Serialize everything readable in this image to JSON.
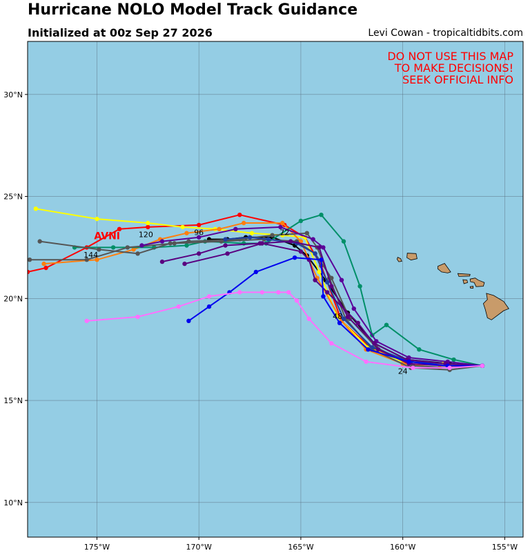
{
  "header": {
    "title": "Hurricane NOLO Model Track Guidance",
    "subtitle": "Initialized at 00z Sep 27 2026",
    "credit": "Levi Cowan - tropicaltidbits.com"
  },
  "warning": {
    "line1": "DO NOT USE THIS MAP",
    "line2": "TO MAKE DECISIONS!",
    "line3": "SEEK OFFICIAL INFO",
    "color": "#ff0000"
  },
  "map": {
    "ocean_color": "#94cde4",
    "land_color": "#c89b6a",
    "lon_range": [
      -178.4,
      -154.1
    ],
    "lat_range": [
      8.3,
      32.6
    ],
    "lat_ticks": [
      {
        "value": 10,
        "label": "10°N"
      },
      {
        "value": 15,
        "label": "15°N"
      },
      {
        "value": 20,
        "label": "20°N"
      },
      {
        "value": 25,
        "label": "25°N"
      },
      {
        "value": 30,
        "label": "30°N"
      }
    ],
    "lon_ticks": [
      {
        "value": -175,
        "label": "175°W"
      },
      {
        "value": -170,
        "label": "170°W"
      },
      {
        "value": -165,
        "label": "165°W"
      },
      {
        "value": -160,
        "label": "160°W"
      },
      {
        "value": -155,
        "label": "155°W"
      }
    ]
  },
  "model_label": {
    "text": "AVNI",
    "lon": -174.5,
    "lat": 22.9
  },
  "hour_labels": [
    {
      "text": "24",
      "lon": -160.0,
      "lat": 16.3
    },
    {
      "text": "48",
      "lon": -163.2,
      "lat": 19.0
    },
    {
      "text": "72",
      "lon": -165.8,
      "lat": 23.1
    },
    {
      "text": "96",
      "lon": -170.0,
      "lat": 23.1
    },
    {
      "text": "120",
      "lon": -172.6,
      "lat": 23.0
    },
    {
      "text": "144",
      "lon": -175.3,
      "lat": 22.0
    }
  ],
  "chart_data": {
    "type": "scatter",
    "series": [
      {
        "color": "#ff0000",
        "points": [
          [
            -156.1,
            16.7
          ],
          [
            -158.0,
            16.8
          ],
          [
            -159.9,
            16.9
          ],
          [
            -161.6,
            17.6
          ],
          [
            -163.0,
            18.9
          ],
          [
            -164.0,
            21.6
          ],
          [
            -164.8,
            23.0
          ],
          [
            -165.8,
            23.6
          ],
          [
            -168.0,
            24.1
          ],
          [
            -170.0,
            23.6
          ],
          [
            -172.5,
            23.5
          ],
          [
            -173.9,
            23.4
          ],
          [
            -175.5,
            22.5
          ],
          [
            -177.5,
            21.5
          ],
          [
            -178.4,
            21.3
          ]
        ]
      },
      {
        "color": "#000000",
        "points": [
          [
            -156.1,
            16.7
          ],
          [
            -157.7,
            16.8
          ],
          [
            -159.8,
            17.0
          ],
          [
            -161.4,
            17.8
          ],
          [
            -162.7,
            19.3
          ],
          [
            -163.8,
            20.9
          ],
          [
            -164.7,
            22.1
          ],
          [
            -165.3,
            22.6
          ],
          [
            -166.4,
            23.0
          ],
          [
            -167.7,
            23.0
          ],
          [
            -168.6,
            22.9
          ],
          [
            -169.5,
            22.9
          ]
        ]
      },
      {
        "color": "#ffff00",
        "points": [
          [
            -156.1,
            16.7
          ],
          [
            -158.0,
            16.8
          ],
          [
            -160.0,
            16.9
          ],
          [
            -161.7,
            17.6
          ],
          [
            -163.2,
            19.1
          ],
          [
            -164.1,
            21.3
          ],
          [
            -164.8,
            23.0
          ],
          [
            -165.9,
            23.1
          ],
          [
            -167.4,
            23.2
          ],
          [
            -169.2,
            23.4
          ],
          [
            -170.8,
            23.5
          ],
          [
            -172.5,
            23.7
          ],
          [
            -175.0,
            23.9
          ],
          [
            -178.0,
            24.4
          ]
        ]
      },
      {
        "color": "#ff7f0e",
        "points": [
          [
            -156.1,
            16.7
          ],
          [
            -158.2,
            16.6
          ],
          [
            -160.0,
            16.8
          ],
          [
            -161.8,
            17.5
          ],
          [
            -163.0,
            18.9
          ],
          [
            -164.2,
            21.0
          ],
          [
            -165.0,
            22.8
          ],
          [
            -165.9,
            23.7
          ],
          [
            -167.8,
            23.7
          ],
          [
            -169.0,
            23.4
          ],
          [
            -170.6,
            23.2
          ],
          [
            -171.9,
            22.9
          ],
          [
            -173.2,
            22.4
          ],
          [
            -175.0,
            21.9
          ],
          [
            -177.6,
            21.7
          ]
        ]
      },
      {
        "color": "#008f68",
        "points": [
          [
            -156.1,
            16.7
          ],
          [
            -157.5,
            17.0
          ],
          [
            -159.2,
            17.5
          ],
          [
            -160.8,
            18.7
          ],
          [
            -161.5,
            18.2
          ],
          [
            -162.1,
            20.6
          ],
          [
            -162.9,
            22.8
          ],
          [
            -164.0,
            24.1
          ],
          [
            -165.0,
            23.8
          ],
          [
            -166.7,
            22.7
          ],
          [
            -167.8,
            22.7
          ],
          [
            -169.7,
            22.8
          ],
          [
            -170.6,
            22.6
          ],
          [
            -172.2,
            22.5
          ],
          [
            -174.2,
            22.5
          ],
          [
            -176.1,
            22.5
          ]
        ]
      },
      {
        "color": "#555555",
        "points": [
          [
            -156.1,
            16.7
          ],
          [
            -157.7,
            16.5
          ],
          [
            -159.6,
            16.6
          ],
          [
            -161.5,
            17.5
          ],
          [
            -162.8,
            19.0
          ],
          [
            -163.6,
            21.0
          ],
          [
            -164.2,
            22.5
          ],
          [
            -164.7,
            23.2
          ],
          [
            -166.4,
            23.1
          ],
          [
            -168.0,
            22.9
          ],
          [
            -170.5,
            22.8
          ],
          [
            -171.4,
            22.7
          ],
          [
            -173.0,
            22.2
          ],
          [
            -174.9,
            22.4
          ],
          [
            -177.8,
            22.8
          ]
        ]
      },
      {
        "color": "#555555",
        "points": [
          [
            -156.1,
            16.7
          ],
          [
            -157.7,
            16.6
          ],
          [
            -159.5,
            16.7
          ],
          [
            -161.3,
            17.6
          ],
          [
            -162.6,
            19.0
          ],
          [
            -163.5,
            21.0
          ],
          [
            -164.3,
            22.2
          ],
          [
            -165.2,
            22.8
          ],
          [
            -166.8,
            22.9
          ],
          [
            -168.9,
            22.8
          ],
          [
            -171.2,
            22.7
          ],
          [
            -173.5,
            22.5
          ],
          [
            -175.5,
            21.9
          ],
          [
            -178.3,
            21.9
          ]
        ]
      },
      {
        "color": "#1f3fa0",
        "points": [
          [
            -156.1,
            16.7
          ],
          [
            -157.9,
            16.8
          ],
          [
            -159.6,
            16.9
          ],
          [
            -161.5,
            17.6
          ],
          [
            -162.9,
            19.0
          ],
          [
            -163.7,
            20.8
          ],
          [
            -164.3,
            22.2
          ],
          [
            -165.2,
            22.7
          ],
          [
            -166.6,
            22.9
          ],
          [
            -167.5,
            23.0
          ],
          [
            -168.7,
            22.9
          ]
        ]
      },
      {
        "color": "#5a0099",
        "points": [
          [
            -156.1,
            16.7
          ],
          [
            -157.8,
            16.9
          ],
          [
            -159.7,
            17.1
          ],
          [
            -161.3,
            17.9
          ],
          [
            -162.4,
            19.5
          ],
          [
            -163.0,
            20.9
          ],
          [
            -163.9,
            22.5
          ],
          [
            -164.4,
            22.9
          ],
          [
            -166.0,
            23.5
          ],
          [
            -168.2,
            23.4
          ],
          [
            -170.0,
            23.0
          ],
          [
            -171.8,
            22.8
          ],
          [
            -172.8,
            22.6
          ]
        ]
      },
      {
        "color": "#5a0080",
        "points": [
          [
            -156.1,
            16.7
          ],
          [
            -157.9,
            16.8
          ],
          [
            -159.8,
            17.0
          ],
          [
            -161.4,
            17.8
          ],
          [
            -162.7,
            19.1
          ],
          [
            -163.5,
            20.6
          ],
          [
            -164.1,
            22.5
          ],
          [
            -165.5,
            22.8
          ],
          [
            -167.0,
            22.7
          ],
          [
            -168.7,
            22.6
          ],
          [
            -170.0,
            22.2
          ],
          [
            -171.8,
            21.8
          ]
        ]
      },
      {
        "color": "#5a0080",
        "points": [
          [
            -156.1,
            16.7
          ],
          [
            -157.8,
            16.7
          ],
          [
            -159.7,
            16.8
          ],
          [
            -161.2,
            17.5
          ],
          [
            -162.2,
            18.8
          ],
          [
            -163.7,
            20.3
          ],
          [
            -164.3,
            20.9
          ],
          [
            -164.6,
            21.9
          ],
          [
            -165.0,
            22.3
          ],
          [
            -166.9,
            22.7
          ],
          [
            -168.6,
            22.2
          ],
          [
            -170.7,
            21.7
          ]
        ]
      },
      {
        "color": "#0000ee",
        "points": [
          [
            -156.1,
            16.7
          ],
          [
            -157.8,
            16.7
          ],
          [
            -159.7,
            16.9
          ],
          [
            -161.7,
            17.5
          ],
          [
            -163.1,
            18.8
          ],
          [
            -163.9,
            20.1
          ],
          [
            -164.0,
            21.9
          ],
          [
            -165.3,
            22.0
          ],
          [
            -167.2,
            21.3
          ],
          [
            -168.5,
            20.3
          ],
          [
            -169.5,
            19.6
          ],
          [
            -170.5,
            18.9
          ]
        ]
      },
      {
        "color": "#ff70ff",
        "points": [
          [
            -156.1,
            16.7
          ],
          [
            -157.7,
            16.6
          ],
          [
            -159.5,
            16.6
          ],
          [
            -161.8,
            16.9
          ],
          [
            -163.5,
            17.8
          ],
          [
            -164.6,
            19.0
          ],
          [
            -165.2,
            19.9
          ],
          [
            -165.6,
            20.3
          ],
          [
            -166.1,
            20.3
          ],
          [
            -166.9,
            20.3
          ],
          [
            -168.0,
            20.3
          ],
          [
            -169.5,
            20.1
          ],
          [
            -171.0,
            19.6
          ],
          [
            -173.0,
            19.1
          ],
          [
            -175.5,
            18.9
          ]
        ]
      }
    ]
  }
}
